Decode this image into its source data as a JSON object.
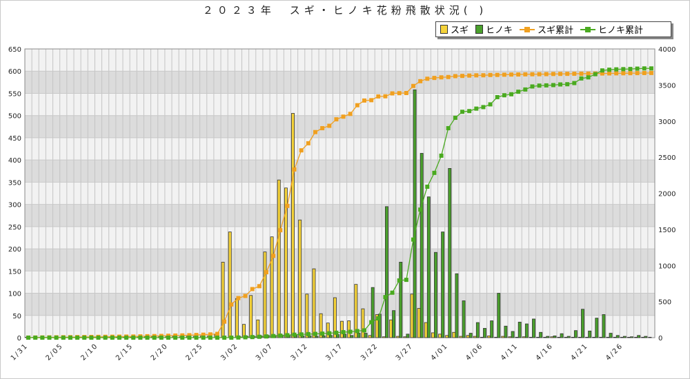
{
  "title": "２０２３年　スギ・ヒノキ花粉飛散状況( )",
  "legend": {
    "sugi": "スギ",
    "hinoki": "ヒノキ",
    "sugi_cum": "スギ累計",
    "hinoki_cum": "ヒノキ累計"
  },
  "colors": {
    "sugi_bar": "#f5d33a",
    "hinoki_bar": "#4aa02c",
    "sugi_cum": "#f0a020",
    "hinoki_cum": "#4aaa20"
  },
  "chart_data": {
    "type": "bar",
    "categories": [
      "1/31",
      "2/01",
      "2/02",
      "2/03",
      "2/04",
      "2/05",
      "2/06",
      "2/07",
      "2/08",
      "2/09",
      "2/10",
      "2/11",
      "2/12",
      "2/13",
      "2/14",
      "2/15",
      "2/16",
      "2/17",
      "2/18",
      "2/19",
      "2/20",
      "2/21",
      "2/22",
      "2/23",
      "2/24",
      "2/25",
      "2/26",
      "2/27",
      "2/28",
      "3/01",
      "3/02",
      "3/03",
      "3/04",
      "3/05",
      "3/06",
      "3/07",
      "3/08",
      "3/09",
      "3/10",
      "3/11",
      "3/12",
      "3/13",
      "3/14",
      "3/15",
      "3/16",
      "3/17",
      "3/18",
      "3/19",
      "3/20",
      "3/21",
      "3/22",
      "3/23",
      "3/24",
      "3/25",
      "3/26",
      "3/27",
      "3/28",
      "3/29",
      "3/30",
      "3/31",
      "4/01",
      "4/02",
      "4/03",
      "4/04",
      "4/05",
      "4/06",
      "4/07",
      "4/08",
      "4/09",
      "4/10",
      "4/11",
      "4/12",
      "4/13",
      "4/14",
      "4/15",
      "4/16",
      "4/17",
      "4/18",
      "4/19",
      "4/20",
      "4/21",
      "4/22",
      "4/23",
      "4/24",
      "4/25",
      "4/26",
      "4/27",
      "4/28",
      "4/29",
      "4/30"
    ],
    "x_tick_labels": [
      "1/31",
      "2/05",
      "2/10",
      "2/15",
      "2/20",
      "2/25",
      "3/02",
      "3/07",
      "3/12",
      "3/17",
      "3/22",
      "3/27",
      "4/01",
      "4/06",
      "4/11",
      "4/16",
      "4/21",
      "4/26"
    ],
    "series": [
      {
        "name": "スギ",
        "axis": "left",
        "values": [
          1,
          1,
          1,
          1,
          1,
          1,
          1,
          1,
          1,
          1,
          1,
          1,
          1,
          1,
          1,
          1,
          2,
          2,
          2,
          2,
          2,
          3,
          2,
          3,
          3,
          4,
          4,
          7,
          170,
          238,
          88,
          30,
          95,
          40,
          193,
          227,
          355,
          337,
          505,
          265,
          98,
          155,
          54,
          33,
          90,
          37,
          38,
          120,
          65,
          5,
          52,
          2,
          40,
          3,
          2,
          98,
          66,
          34,
          11,
          8,
          5,
          12,
          3,
          5,
          3,
          1,
          4,
          1,
          3,
          2,
          1,
          2,
          1,
          1,
          1,
          2,
          1,
          1,
          1,
          1,
          1,
          1,
          1,
          1,
          1,
          1,
          1,
          1,
          1,
          1
        ]
      },
      {
        "name": "ヒノキ",
        "axis": "left",
        "values": [
          0,
          0,
          0,
          0,
          0,
          0,
          0,
          0,
          0,
          0,
          0,
          0,
          0,
          0,
          0,
          0,
          0,
          0,
          0,
          0,
          0,
          0,
          0,
          0,
          0,
          0,
          0,
          0,
          0,
          0,
          2,
          3,
          3,
          4,
          5,
          5,
          6,
          6,
          7,
          4,
          4,
          3,
          4,
          5,
          7,
          8,
          5,
          10,
          10,
          113,
          53,
          295,
          61,
          170,
          8,
          558,
          415,
          317,
          192,
          238,
          381,
          144,
          83,
          10,
          34,
          21,
          38,
          100,
          26,
          14,
          35,
          31,
          42,
          12,
          3,
          4,
          9,
          3,
          16,
          64,
          15,
          44,
          52,
          10,
          5,
          3,
          2,
          5,
          3,
          0
        ]
      },
      {
        "name": "スギ累計",
        "axis": "right",
        "values": [
          1,
          2,
          3,
          4,
          5,
          6,
          7,
          8,
          9,
          10,
          11,
          12,
          13,
          14,
          15,
          16,
          18,
          20,
          22,
          24,
          26,
          29,
          31,
          34,
          37,
          41,
          45,
          52,
          222,
          460,
          548,
          578,
          673,
          713,
          906,
          1133,
          1488,
          1825,
          2330,
          2595,
          2693,
          2848,
          2902,
          2935,
          3025,
          3062,
          3100,
          3220,
          3285,
          3290,
          3342,
          3344,
          3384,
          3387,
          3389,
          3487,
          3553,
          3587,
          3598,
          3606,
          3611,
          3623,
          3626,
          3631,
          3634,
          3635,
          3639,
          3640,
          3643,
          3645,
          3646,
          3648,
          3649,
          3650,
          3651,
          3653,
          3654,
          3655,
          3656,
          3657,
          3658,
          3659,
          3660,
          3661,
          3662,
          3663,
          3664,
          3665,
          3666,
          3667
        ]
      },
      {
        "name": "ヒノキ累計",
        "axis": "right",
        "values": [
          0,
          0,
          0,
          0,
          0,
          0,
          0,
          0,
          0,
          0,
          0,
          0,
          0,
          0,
          0,
          0,
          0,
          0,
          0,
          0,
          0,
          0,
          0,
          0,
          0,
          0,
          0,
          0,
          0,
          0,
          2,
          5,
          8,
          12,
          17,
          22,
          28,
          34,
          41,
          45,
          49,
          52,
          56,
          61,
          68,
          76,
          81,
          91,
          101,
          214,
          267,
          562,
          623,
          793,
          801,
          1359,
          1774,
          2091,
          2283,
          2521,
          2902,
          3046,
          3129,
          3139,
          3173,
          3194,
          3232,
          3332,
          3358,
          3372,
          3407,
          3438,
          3480,
          3492,
          3495,
          3499,
          3508,
          3511,
          3527,
          3591,
          3606,
          3650,
          3702,
          3712,
          3717,
          3720,
          3722,
          3727,
          3730,
          3730
        ]
      }
    ],
    "left_axis": {
      "min": 0,
      "max": 650,
      "ticks": [
        0,
        50,
        100,
        150,
        200,
        250,
        300,
        350,
        400,
        450,
        500,
        550,
        600,
        650
      ]
    },
    "right_axis": {
      "min": 0,
      "max": 4000,
      "ticks": [
        0,
        500,
        1000,
        1500,
        2000,
        2500,
        3000,
        3500,
        4000
      ]
    },
    "grid": true,
    "legend_position": "top-right"
  }
}
